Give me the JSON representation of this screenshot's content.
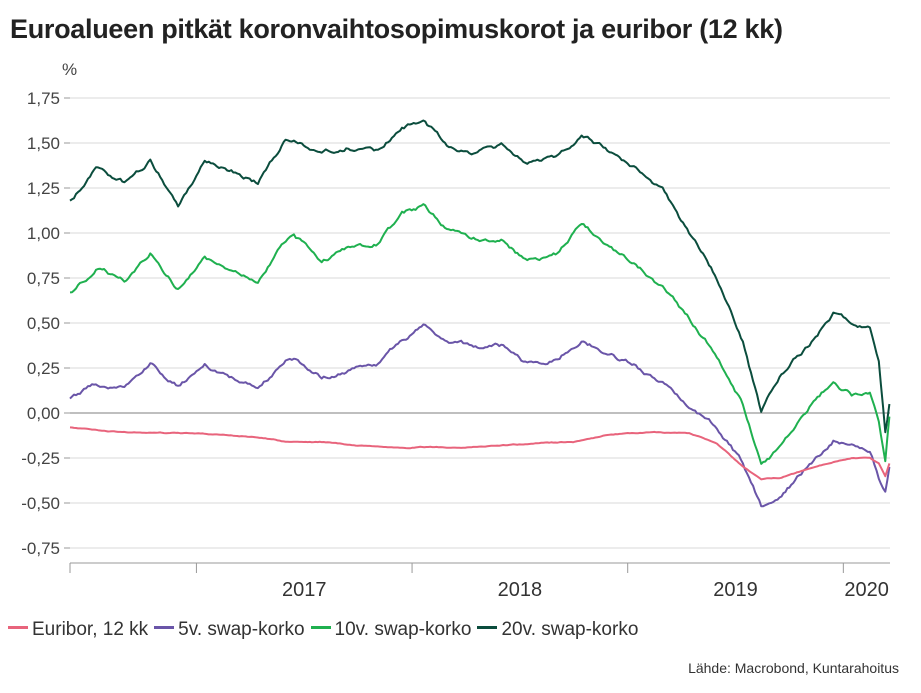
{
  "title": "Euroalueen pitkät koronvaihtosopimuskorot ja euribor (12 kk)",
  "source": "Lähde: Macrobond, Kuntarahoitus",
  "chart_data": {
    "type": "line",
    "title": "Euroalueen pitkät koronvaihtosopimuskorot ja euribor (12 kk)",
    "ylabel": "%",
    "xlabel": "",
    "ylim": [
      -0.75,
      1.75
    ],
    "yticks": [
      -0.75,
      -0.5,
      -0.25,
      0.0,
      0.25,
      0.5,
      0.75,
      1.0,
      1.25,
      1.5,
      1.75
    ],
    "ytick_labels": [
      "-0,75",
      "-0,50",
      "-0,25",
      "0,00",
      "0,25",
      "0,50",
      "0,75",
      "1,00",
      "1,25",
      "1,50",
      "1,75"
    ],
    "xlim": [
      "2016-06-01",
      "2020-03-20"
    ],
    "xtick_labels": [
      "2017",
      "2018",
      "2019",
      "2020"
    ],
    "grid": true,
    "legend_position": "bottom",
    "series": [
      {
        "name": "Euribor, 12 kk",
        "color": "#e8647c",
        "x": [
          "2016-06-01",
          "2016-08-01",
          "2016-10-01",
          "2016-12-01",
          "2017-02-01",
          "2017-04-01",
          "2017-06-01",
          "2017-08-01",
          "2017-10-01",
          "2017-12-01",
          "2018-02-01",
          "2018-04-01",
          "2018-06-01",
          "2018-08-01",
          "2018-10-01",
          "2018-12-01",
          "2019-01-15",
          "2019-03-01",
          "2019-04-15",
          "2019-06-01",
          "2019-07-15",
          "2019-08-15",
          "2019-09-15",
          "2019-10-15",
          "2019-11-15",
          "2019-12-15",
          "2020-01-15",
          "2020-02-15",
          "2020-03-01",
          "2020-03-12",
          "2020-03-19"
        ],
        "y": [
          -0.08,
          -0.1,
          -0.11,
          -0.11,
          -0.12,
          -0.13,
          -0.16,
          -0.16,
          -0.18,
          -0.19,
          -0.19,
          -0.19,
          -0.18,
          -0.17,
          -0.16,
          -0.12,
          -0.11,
          -0.11,
          -0.11,
          -0.17,
          -0.3,
          -0.37,
          -0.36,
          -0.33,
          -0.3,
          -0.27,
          -0.25,
          -0.25,
          -0.28,
          -0.35,
          -0.28
        ]
      },
      {
        "name": "5v. swap-korko",
        "color": "#6a55a8",
        "x": [
          "2016-06-01",
          "2016-07-15",
          "2016-09-01",
          "2016-10-15",
          "2016-12-01",
          "2017-01-15",
          "2017-03-01",
          "2017-04-15",
          "2017-06-01",
          "2017-06-15",
          "2017-08-01",
          "2017-09-15",
          "2017-11-01",
          "2017-12-15",
          "2018-01-20",
          "2018-03-01",
          "2018-04-15",
          "2018-06-01",
          "2018-07-15",
          "2018-09-01",
          "2018-10-15",
          "2018-12-01",
          "2019-01-15",
          "2019-03-01",
          "2019-04-15",
          "2019-06-01",
          "2019-07-15",
          "2019-08-15",
          "2019-09-15",
          "2019-10-15",
          "2019-11-15",
          "2019-12-15",
          "2020-01-15",
          "2020-02-15",
          "2020-03-01",
          "2020-03-12",
          "2020-03-19"
        ],
        "y": [
          0.08,
          0.16,
          0.15,
          0.28,
          0.15,
          0.26,
          0.2,
          0.14,
          0.29,
          0.3,
          0.2,
          0.24,
          0.26,
          0.42,
          0.48,
          0.41,
          0.37,
          0.37,
          0.27,
          0.3,
          0.4,
          0.33,
          0.26,
          0.16,
          0.04,
          -0.08,
          -0.28,
          -0.52,
          -0.48,
          -0.36,
          -0.25,
          -0.15,
          -0.18,
          -0.2,
          -0.35,
          -0.43,
          -0.3
        ]
      },
      {
        "name": "10v. swap-korko",
        "color": "#1fb04f",
        "x": [
          "2016-06-01",
          "2016-07-15",
          "2016-09-01",
          "2016-10-15",
          "2016-12-01",
          "2017-01-15",
          "2017-03-01",
          "2017-04-15",
          "2017-06-01",
          "2017-06-15",
          "2017-08-01",
          "2017-09-15",
          "2017-11-01",
          "2017-12-15",
          "2018-01-20",
          "2018-03-01",
          "2018-04-15",
          "2018-06-01",
          "2018-07-15",
          "2018-09-01",
          "2018-10-15",
          "2018-12-01",
          "2019-01-15",
          "2019-03-01",
          "2019-04-15",
          "2019-06-01",
          "2019-07-15",
          "2019-08-15",
          "2019-09-15",
          "2019-10-15",
          "2019-11-15",
          "2019-12-15",
          "2020-01-15",
          "2020-02-15",
          "2020-03-01",
          "2020-03-12",
          "2020-03-19"
        ],
        "y": [
          0.67,
          0.8,
          0.74,
          0.9,
          0.7,
          0.85,
          0.77,
          0.73,
          0.96,
          0.98,
          0.85,
          0.92,
          0.94,
          1.1,
          1.15,
          1.02,
          0.97,
          0.96,
          0.84,
          0.88,
          1.05,
          0.92,
          0.82,
          0.7,
          0.52,
          0.32,
          0.05,
          -0.28,
          -0.2,
          -0.05,
          0.08,
          0.18,
          0.1,
          0.1,
          -0.05,
          -0.27,
          -0.02
        ]
      },
      {
        "name": "20v. swap-korko",
        "color": "#0b4d3d",
        "x": [
          "2016-06-01",
          "2016-07-15",
          "2016-09-01",
          "2016-10-15",
          "2016-12-01",
          "2017-01-15",
          "2017-03-01",
          "2017-04-15",
          "2017-06-01",
          "2017-06-15",
          "2017-08-01",
          "2017-09-15",
          "2017-11-01",
          "2017-12-15",
          "2018-01-20",
          "2018-03-01",
          "2018-04-15",
          "2018-06-01",
          "2018-07-15",
          "2018-09-01",
          "2018-10-15",
          "2018-12-01",
          "2019-01-15",
          "2019-03-01",
          "2019-04-15",
          "2019-06-01",
          "2019-07-15",
          "2019-08-15",
          "2019-09-15",
          "2019-10-15",
          "2019-11-15",
          "2019-12-15",
          "2020-01-15",
          "2020-02-15",
          "2020-03-01",
          "2020-03-12",
          "2020-03-19"
        ],
        "y": [
          1.18,
          1.36,
          1.28,
          1.4,
          1.16,
          1.4,
          1.35,
          1.28,
          1.52,
          1.52,
          1.45,
          1.48,
          1.45,
          1.58,
          1.62,
          1.5,
          1.45,
          1.48,
          1.38,
          1.42,
          1.55,
          1.45,
          1.36,
          1.25,
          1.0,
          0.75,
          0.4,
          0.0,
          0.2,
          0.32,
          0.42,
          0.55,
          0.5,
          0.48,
          0.3,
          -0.1,
          0.05
        ]
      }
    ]
  }
}
